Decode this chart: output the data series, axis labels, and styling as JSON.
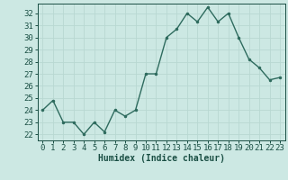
{
  "x": [
    0,
    1,
    2,
    3,
    4,
    5,
    6,
    7,
    8,
    9,
    10,
    11,
    12,
    13,
    14,
    15,
    16,
    17,
    18,
    19,
    20,
    21,
    22,
    23
  ],
  "y": [
    24.0,
    24.8,
    23.0,
    23.0,
    22.0,
    23.0,
    22.2,
    24.0,
    23.5,
    24.0,
    27.0,
    27.0,
    30.0,
    30.7,
    32.0,
    31.3,
    32.5,
    31.3,
    32.0,
    30.0,
    28.2,
    27.5,
    26.5,
    26.7
  ],
  "line_color": "#2e6b5e",
  "bg_color": "#cce8e3",
  "grid_color": "#b8d8d2",
  "xlabel": "Humidex (Indice chaleur)",
  "ylabel_ticks": [
    22,
    23,
    24,
    25,
    26,
    27,
    28,
    29,
    30,
    31,
    32
  ],
  "ylim": [
    21.5,
    32.8
  ],
  "xlim": [
    -0.5,
    23.5
  ],
  "marker": ".",
  "marker_size": 3,
  "line_width": 1.0,
  "font_color": "#1a4f44",
  "font_size_ticks": 6.5,
  "font_size_xlabel": 7.0
}
